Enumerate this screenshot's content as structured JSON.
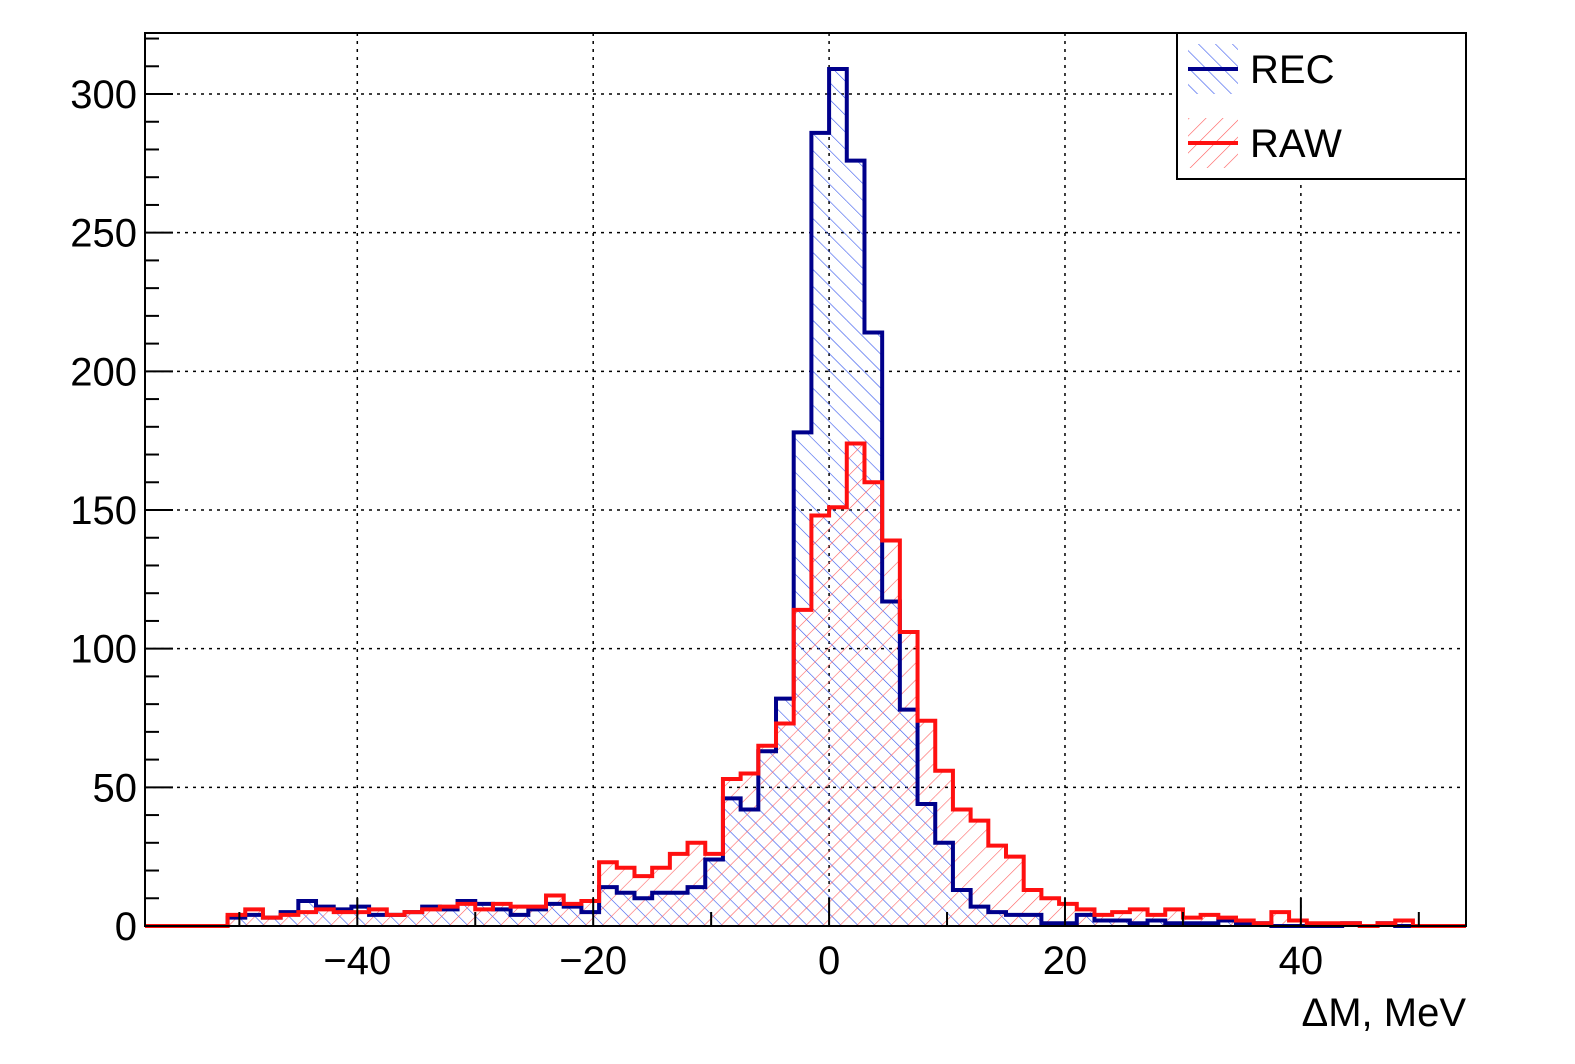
{
  "chart_data": {
    "type": "histogram",
    "title": "",
    "xlabel": "ΔM, MeV",
    "ylabel": "",
    "xlim": [
      -58,
      54
    ],
    "ylim": [
      0,
      322
    ],
    "bin_width": 1.5,
    "grid": true,
    "legend_position": "top-right",
    "x_ticks": [
      -40,
      -20,
      0,
      20,
      40
    ],
    "x_tick_labels": [
      "−40",
      "−20",
      "0",
      "20",
      "40"
    ],
    "y_ticks": [
      0,
      50,
      100,
      150,
      200,
      250,
      300
    ],
    "y_tick_labels": [
      "0",
      "50",
      "100",
      "150",
      "200",
      "250",
      "300"
    ],
    "series": [
      {
        "name": "REC",
        "color": "#00008b",
        "hatch_color": "#3355ee",
        "x": [
          -50.25,
          -48.75,
          -47.25,
          -45.75,
          -44.25,
          -42.75,
          -41.25,
          -39.75,
          -38.25,
          -36.75,
          -35.25,
          -33.75,
          -32.25,
          -30.75,
          -29.25,
          -27.75,
          -26.25,
          -24.75,
          -23.25,
          -21.75,
          -20.25,
          -18.75,
          -17.25,
          -15.75,
          -14.25,
          -12.75,
          -11.25,
          -9.75,
          -8.25,
          -6.75,
          -5.25,
          -3.75,
          -2.25,
          -0.75,
          0.75,
          2.25,
          3.75,
          5.25,
          6.75,
          8.25,
          9.75,
          11.25,
          12.75,
          14.25,
          15.75,
          17.25,
          18.75,
          20.25,
          21.75,
          23.25,
          24.75,
          26.25,
          27.75,
          29.25,
          30.75,
          32.25,
          33.75,
          35.25,
          36.75,
          38.25,
          39.75,
          41.25,
          42.75,
          44.25,
          45.75,
          47.25,
          48.75
        ],
        "values": [
          3,
          4,
          3,
          5,
          9,
          7,
          6,
          7,
          4,
          4,
          5,
          7,
          6,
          9,
          8,
          6,
          4,
          6,
          8,
          7,
          5,
          14,
          12,
          10,
          12,
          12,
          14,
          24,
          46,
          42,
          63,
          82,
          178,
          286,
          309,
          276,
          214,
          117,
          78,
          44,
          30,
          13,
          7,
          5,
          4,
          4,
          1,
          1,
          4,
          2,
          2,
          1,
          2,
          1,
          1,
          1,
          2,
          1,
          1,
          0,
          0,
          0,
          0,
          1,
          0,
          1,
          0
        ]
      },
      {
        "name": "RAW",
        "color": "#ff1010",
        "hatch_color": "#ff6060",
        "x": [
          -50.25,
          -48.75,
          -47.25,
          -45.75,
          -44.25,
          -42.75,
          -41.25,
          -39.75,
          -38.25,
          -36.75,
          -35.25,
          -33.75,
          -32.25,
          -30.75,
          -29.25,
          -27.75,
          -26.25,
          -24.75,
          -23.25,
          -21.75,
          -20.25,
          -18.75,
          -17.25,
          -15.75,
          -14.25,
          -12.75,
          -11.25,
          -9.75,
          -8.25,
          -6.75,
          -5.25,
          -3.75,
          -2.25,
          -0.75,
          0.75,
          2.25,
          3.75,
          5.25,
          6.75,
          8.25,
          9.75,
          11.25,
          12.75,
          14.25,
          15.75,
          17.25,
          18.75,
          20.25,
          21.75,
          23.25,
          24.75,
          26.25,
          27.75,
          29.25,
          30.75,
          32.25,
          33.75,
          35.25,
          36.75,
          38.25,
          39.75,
          41.25,
          42.75,
          44.25,
          45.75,
          47.25,
          48.75
        ],
        "values": [
          4,
          6,
          3,
          4,
          5,
          6,
          5,
          5,
          6,
          4,
          5,
          6,
          7,
          8,
          6,
          8,
          7,
          7,
          11,
          8,
          9,
          23,
          21,
          18,
          21,
          26,
          30,
          26,
          53,
          55,
          65,
          73,
          114,
          148,
          151,
          174,
          160,
          139,
          106,
          74,
          56,
          42,
          38,
          29,
          25,
          13,
          10,
          8,
          6,
          4,
          5,
          6,
          4,
          6,
          3,
          4,
          3,
          2,
          1,
          5,
          2,
          1,
          1,
          1,
          0,
          1,
          2
        ]
      }
    ]
  }
}
